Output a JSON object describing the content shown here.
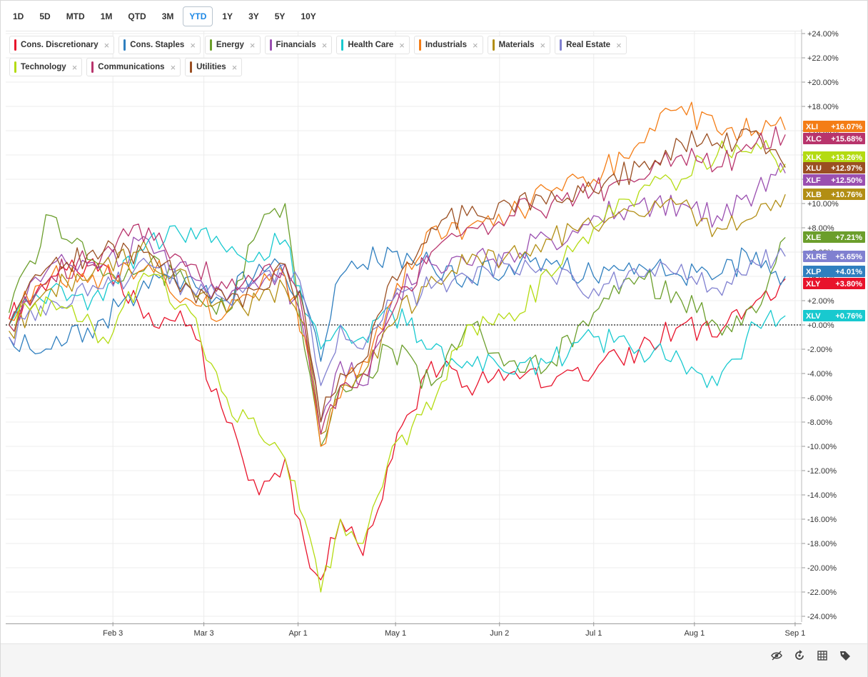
{
  "toolbar": {
    "ranges": [
      "1D",
      "5D",
      "MTD",
      "1M",
      "QTD",
      "3M",
      "YTD",
      "1Y",
      "3Y",
      "5Y",
      "10Y"
    ],
    "active": "YTD"
  },
  "legend": [
    {
      "label": "Cons. Discretionary",
      "color": "#e8132b"
    },
    {
      "label": "Cons. Staples",
      "color": "#2f7fbf"
    },
    {
      "label": "Energy",
      "color": "#6b9e2b"
    },
    {
      "label": "Financials",
      "color": "#9a4fb0"
    },
    {
      "label": "Health Care",
      "color": "#18c9cf"
    },
    {
      "label": "Industrials",
      "color": "#f47d16"
    },
    {
      "label": "Materials",
      "color": "#b28e14"
    },
    {
      "label": "Real Estate",
      "color": "#8080d0"
    },
    {
      "label": "Technology",
      "color": "#b4db12"
    },
    {
      "label": "Communications",
      "color": "#b8346c"
    },
    {
      "label": "Utilities",
      "color": "#9a4f22"
    }
  ],
  "chart_data": {
    "type": "line",
    "x_ticks": [
      "Feb 3",
      "Mar 3",
      "Apr 1",
      "May 1",
      "Jun 2",
      "Jul 1",
      "Aug 1",
      "Sep 1"
    ],
    "y_ticks": [
      "+24.00%",
      "+22.00%",
      "+20.00%",
      "+18.00%",
      "+16.00%",
      "+14.00%",
      "+12.00%",
      "+10.00%",
      "+8.00%",
      "+6.00%",
      "+4.00%",
      "+2.00%",
      "+0.00%",
      "-2.00%",
      "-4.00%",
      "-6.00%",
      "-8.00%",
      "-10.00%",
      "-12.00%",
      "-14.00%",
      "-16.00%",
      "-18.00%",
      "-20.00%",
      "-22.00%",
      "-24.00%"
    ],
    "ylim": [
      -24,
      24
    ],
    "y_unit": "%",
    "zero_line": true,
    "series": [
      {
        "name": "Cons. Discretionary",
        "ticker": "XLY",
        "end_label": "+3.80%",
        "color": "#e8132b",
        "x": [
          "Jan 2",
          "Jan 15",
          "Jan 31",
          "Feb 14",
          "Feb 27",
          "Mar 10",
          "Mar 20",
          "Mar 28",
          "Apr 3",
          "Apr 8",
          "Apr 14",
          "Apr 21",
          "Apr 30",
          "May 12",
          "May 23",
          "Jun 5",
          "Jun 18",
          "Jul 1",
          "Jul 15",
          "Jul 28",
          "Aug 8",
          "Aug 20",
          "Aug 29"
        ],
        "values": [
          0.5,
          4,
          5,
          1,
          0,
          -8,
          -14,
          -11,
          -18,
          -21,
          -16,
          -19,
          -11,
          -3,
          -5,
          -4,
          -5,
          -4,
          -2,
          0,
          -1,
          2,
          3.8
        ]
      },
      {
        "name": "Cons. Staples",
        "ticker": "XLP",
        "end_label": "+4.01%",
        "color": "#2f7fbf",
        "x": [
          "Jan 2",
          "Jan 15",
          "Jan 31",
          "Feb 14",
          "Feb 27",
          "Mar 10",
          "Mar 20",
          "Mar 28",
          "Apr 3",
          "Apr 8",
          "Apr 14",
          "Apr 21",
          "Apr 30",
          "May 12",
          "May 23",
          "Jun 5",
          "Jun 18",
          "Jul 1",
          "Jul 15",
          "Jul 28",
          "Aug 8",
          "Aug 20",
          "Aug 29"
        ],
        "values": [
          -1,
          -2,
          0.5,
          3,
          4,
          2,
          5,
          4,
          2,
          -3,
          4,
          5,
          6,
          5,
          4,
          5,
          5,
          4,
          5,
          4,
          4,
          6,
          4.01
        ]
      },
      {
        "name": "Energy",
        "ticker": "XLE",
        "end_label": "+7.21%",
        "color": "#6b9e2b",
        "x": [
          "Jan 2",
          "Jan 15",
          "Jan 31",
          "Feb 14",
          "Feb 27",
          "Mar 10",
          "Mar 20",
          "Mar 28",
          "Apr 3",
          "Apr 8",
          "Apr 14",
          "Apr 21",
          "Apr 30",
          "May 12",
          "May 23",
          "Jun 5",
          "Jun 18",
          "Jul 1",
          "Jul 15",
          "Jul 28",
          "Aug 8",
          "Aug 20",
          "Aug 29"
        ],
        "values": [
          1,
          9,
          4,
          5,
          3,
          1,
          8,
          10,
          -2,
          -10,
          -5,
          -4,
          -2,
          -5,
          0,
          -3,
          -3,
          1,
          4,
          2,
          0,
          1,
          7.21
        ]
      },
      {
        "name": "Financials",
        "ticker": "XLF",
        "end_label": "+12.50%",
        "color": "#9a4fb0",
        "x": [
          "Jan 2",
          "Jan 15",
          "Jan 31",
          "Feb 14",
          "Feb 27",
          "Mar 10",
          "Mar 20",
          "Mar 28",
          "Apr 3",
          "Apr 8",
          "Apr 14",
          "Apr 21",
          "Apr 30",
          "May 12",
          "May 23",
          "Jun 5",
          "Jun 18",
          "Jul 1",
          "Jul 15",
          "Jul 28",
          "Aug 8",
          "Aug 20",
          "Aug 29"
        ],
        "values": [
          0,
          5,
          5,
          7,
          4,
          2,
          3,
          4,
          -1,
          -8,
          -3,
          -5,
          2,
          5,
          5,
          6,
          7,
          9,
          10,
          10,
          9,
          11,
          12.5
        ]
      },
      {
        "name": "Health Care",
        "ticker": "XLV",
        "end_label": "+0.76%",
        "color": "#18c9cf",
        "x": [
          "Jan 2",
          "Jan 15",
          "Jan 31",
          "Feb 14",
          "Feb 27",
          "Mar 10",
          "Mar 20",
          "Mar 28",
          "Apr 3",
          "Apr 8",
          "Apr 14",
          "Apr 21",
          "Apr 30",
          "May 12",
          "May 23",
          "Jun 5",
          "Jun 18",
          "Jul 1",
          "Jul 15",
          "Jul 28",
          "Aug 8",
          "Aug 20",
          "Aug 29"
        ],
        "values": [
          0,
          3,
          2,
          7,
          8,
          6,
          6,
          7,
          1,
          -2,
          0,
          -1,
          1,
          -2,
          -3,
          -4,
          -3,
          -1,
          -2,
          -3,
          -5,
          0,
          0.76
        ]
      },
      {
        "name": "Industrials",
        "ticker": "XLI",
        "end_label": "+16.07%",
        "color": "#f47d16",
        "x": [
          "Jan 2",
          "Jan 15",
          "Jan 31",
          "Feb 14",
          "Feb 27",
          "Mar 10",
          "Mar 20",
          "Mar 28",
          "Apr 3",
          "Apr 8",
          "Apr 14",
          "Apr 21",
          "Apr 30",
          "May 12",
          "May 23",
          "Jun 5",
          "Jun 18",
          "Jul 1",
          "Jul 15",
          "Jul 28",
          "Aug 8",
          "Aug 20",
          "Aug 29"
        ],
        "values": [
          0.5,
          4,
          4,
          5,
          2,
          1,
          3,
          4,
          -1,
          -10,
          -6,
          -3,
          2,
          8,
          8,
          9,
          11,
          12,
          15,
          18,
          16,
          16,
          16.07
        ]
      },
      {
        "name": "Materials",
        "ticker": "XLB",
        "end_label": "+10.76%",
        "color": "#b28e14",
        "x": [
          "Jan 2",
          "Jan 15",
          "Jan 31",
          "Feb 14",
          "Feb 27",
          "Mar 10",
          "Mar 20",
          "Mar 28",
          "Apr 3",
          "Apr 8",
          "Apr 14",
          "Apr 21",
          "Apr 30",
          "May 12",
          "May 23",
          "Jun 5",
          "Jun 18",
          "Jul 1",
          "Jul 15",
          "Jul 28",
          "Aug 8",
          "Aug 20",
          "Aug 29"
        ],
        "values": [
          -0.5,
          3,
          5,
          6,
          3,
          1,
          2,
          3,
          0,
          -9,
          -5,
          -4,
          0,
          4,
          5,
          6,
          7,
          8,
          9,
          10,
          8,
          9,
          10.76
        ]
      },
      {
        "name": "Real Estate",
        "ticker": "XLRE",
        "end_label": "+5.65%",
        "color": "#8080d0",
        "x": [
          "Jan 2",
          "Jan 15",
          "Jan 31",
          "Feb 14",
          "Feb 27",
          "Mar 10",
          "Mar 20",
          "Mar 28",
          "Apr 3",
          "Apr 8",
          "Apr 14",
          "Apr 21",
          "Apr 30",
          "May 12",
          "May 23",
          "Jun 5",
          "Jun 18",
          "Jul 1",
          "Jul 15",
          "Jul 28",
          "Aug 8",
          "Aug 20",
          "Aug 29"
        ],
        "values": [
          -1,
          2,
          3,
          5,
          3,
          2,
          4,
          5,
          2,
          -5,
          0,
          -2,
          2,
          3,
          4,
          5,
          4,
          3,
          4,
          5,
          3,
          5,
          5.65
        ]
      },
      {
        "name": "Technology",
        "ticker": "XLK",
        "end_label": "+13.26%",
        "color": "#b4db12",
        "x": [
          "Jan 2",
          "Jan 15",
          "Jan 31",
          "Feb 14",
          "Feb 27",
          "Mar 10",
          "Mar 20",
          "Mar 28",
          "Apr 3",
          "Apr 8",
          "Apr 14",
          "Apr 21",
          "Apr 30",
          "May 12",
          "May 23",
          "Jun 5",
          "Jun 18",
          "Jul 1",
          "Jul 15",
          "Jul 28",
          "Aug 8",
          "Aug 20",
          "Aug 29"
        ],
        "values": [
          0,
          2,
          -1,
          4,
          1,
          -6,
          -9,
          -11,
          -16,
          -22,
          -16,
          -18,
          -10,
          -7,
          0,
          1,
          4,
          8,
          11,
          12,
          14,
          15,
          13.26
        ]
      },
      {
        "name": "Communications",
        "ticker": "XLC",
        "end_label": "+15.68%",
        "color": "#b8346c",
        "x": [
          "Jan 2",
          "Jan 15",
          "Jan 31",
          "Feb 14",
          "Feb 27",
          "Mar 10",
          "Mar 20",
          "Mar 28",
          "Apr 3",
          "Apr 8",
          "Apr 14",
          "Apr 21",
          "Apr 30",
          "May 12",
          "May 23",
          "Jun 5",
          "Jun 18",
          "Jul 1",
          "Jul 15",
          "Jul 28",
          "Aug 8",
          "Aug 20",
          "Aug 29"
        ],
        "values": [
          0,
          4,
          6,
          8,
          5,
          3,
          4,
          5,
          0,
          -9,
          -5,
          -4,
          1,
          6,
          8,
          9,
          10,
          11,
          12,
          14,
          13,
          15,
          15.68
        ]
      },
      {
        "name": "Utilities",
        "ticker": "XLU",
        "end_label": "+12.97%",
        "color": "#9a4f22",
        "x": [
          "Jan 2",
          "Jan 15",
          "Jan 31",
          "Feb 14",
          "Feb 27",
          "Mar 10",
          "Mar 20",
          "Mar 28",
          "Apr 3",
          "Apr 8",
          "Apr 14",
          "Apr 21",
          "Apr 30",
          "May 12",
          "May 23",
          "Jun 5",
          "Jun 18",
          "Jul 1",
          "Jul 15",
          "Jul 28",
          "Aug 8",
          "Aug 20",
          "Aug 29"
        ],
        "values": [
          0,
          5,
          6,
          6,
          3,
          2,
          3,
          5,
          1,
          -8,
          -4,
          -3,
          4,
          8,
          9,
          10,
          11,
          11,
          13,
          15,
          15,
          16,
          12.97
        ]
      }
    ],
    "end_label_order": [
      "XLI",
      "XLC",
      "XLK",
      "XLU",
      "XLF",
      "XLB",
      "XLE",
      "XLRE",
      "XLP",
      "XLY",
      "XLV"
    ],
    "grid": true,
    "legend_position": "top-left"
  },
  "tools": [
    "hide-icon",
    "reset-icon",
    "grid-icon",
    "tag-icon"
  ]
}
